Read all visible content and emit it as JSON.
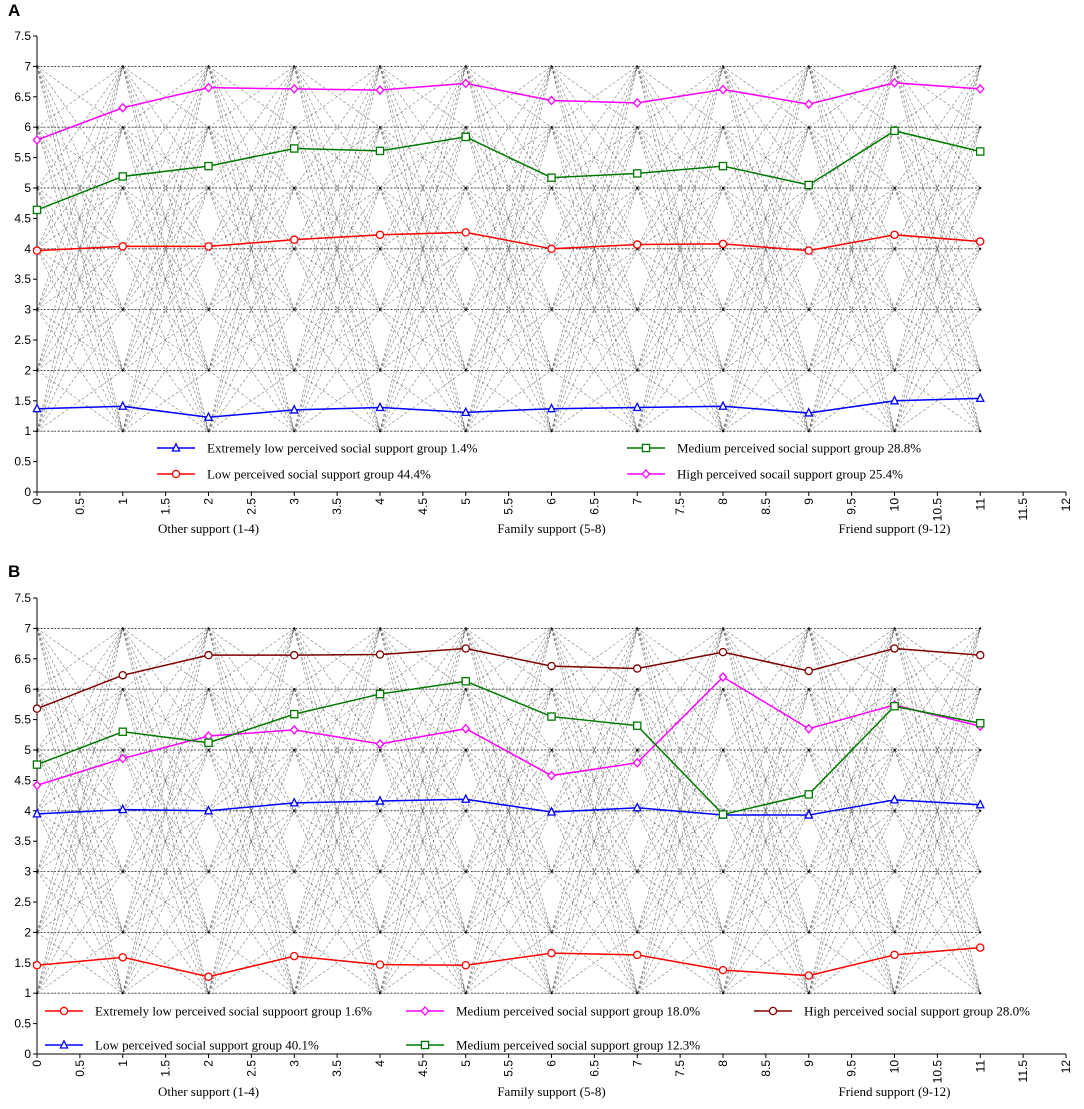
{
  "chart_data": [
    {
      "panel": "A",
      "type": "line",
      "xlim": [
        0,
        12
      ],
      "ylim": [
        0,
        7.5
      ],
      "x_ticks": [
        "0",
        "0.5",
        "1",
        "1.5",
        "2",
        "2.5",
        "3",
        "3.5",
        "4",
        "4.5",
        "5",
        "5.5",
        "6",
        "6.5",
        "7",
        "7.5",
        "8",
        "8.5",
        "9",
        "9.5",
        "10",
        "10.5",
        "11",
        "11.5",
        "12"
      ],
      "y_ticks": [
        "0",
        "0.5",
        "1",
        "1.5",
        "2",
        "2.5",
        "3",
        "3.5",
        "4",
        "4.5",
        "5",
        "5.5",
        "6",
        "6.5",
        "7",
        "7.5"
      ],
      "group_labels": [
        {
          "text": "Other support (1-4)",
          "x": 2.0
        },
        {
          "text": "Family support (5-8)",
          "x": 6.0
        },
        {
          "text": "Friend support (9-12)",
          "x": 10.0
        }
      ],
      "x": [
        0,
        1,
        2,
        3,
        4,
        5,
        6,
        7,
        8,
        9,
        10,
        11
      ],
      "series": [
        {
          "name": "Extremely low perceived social support group 1.4%",
          "color": "#0000ff",
          "marker": "triangle",
          "values": [
            1.37,
            1.41,
            1.23,
            1.35,
            1.39,
            1.31,
            1.37,
            1.39,
            1.41,
            1.3,
            1.5,
            1.54
          ]
        },
        {
          "name": "Low perceived social support group 44.4%",
          "color": "#ff0000",
          "marker": "circle",
          "values": [
            3.97,
            4.04,
            4.04,
            4.15,
            4.23,
            4.27,
            4.0,
            4.07,
            4.08,
            3.97,
            4.23,
            4.12
          ]
        },
        {
          "name": "Medium perceived social support group 28.8%",
          "color": "#007a00",
          "marker": "square",
          "values": [
            4.64,
            5.19,
            5.36,
            5.65,
            5.61,
            5.84,
            5.17,
            5.24,
            5.36,
            5.05,
            5.94,
            5.6
          ]
        },
        {
          "name": "High perceived socail support group 25.4%",
          "color": "#ff00ff",
          "marker": "diamond",
          "values": [
            5.79,
            6.32,
            6.65,
            6.63,
            6.61,
            6.72,
            6.44,
            6.4,
            6.62,
            6.38,
            6.73,
            6.63
          ]
        }
      ],
      "legend": [
        {
          "series": 0,
          "col": 0,
          "row": 0
        },
        {
          "series": 2,
          "col": 1,
          "row": 0
        },
        {
          "series": 1,
          "col": 0,
          "row": 1
        },
        {
          "series": 3,
          "col": 1,
          "row": 1
        }
      ]
    },
    {
      "panel": "B",
      "type": "line",
      "xlim": [
        0,
        12
      ],
      "ylim": [
        0,
        7.5
      ],
      "x_ticks": [
        "0",
        "0.5",
        "1",
        "1.5",
        "2",
        "2.5",
        "3",
        "3.5",
        "4",
        "4.5",
        "5",
        "5.5",
        "6",
        "6.5",
        "7",
        "7.5",
        "8",
        "8.5",
        "9",
        "9.5",
        "10",
        "10.5",
        "11",
        "11.5",
        "12"
      ],
      "y_ticks": [
        "0",
        "0.5",
        "1",
        "1.5",
        "2",
        "2.5",
        "3",
        "3.5",
        "4",
        "4.5",
        "5",
        "5.5",
        "6",
        "6.5",
        "7",
        "7.5"
      ],
      "group_labels": [
        {
          "text": "Other support (1-4)",
          "x": 2.0
        },
        {
          "text": "Family support (5-8)",
          "x": 6.0
        },
        {
          "text": "Friend support (9-12)",
          "x": 10.0
        }
      ],
      "x": [
        0,
        1,
        2,
        3,
        4,
        5,
        6,
        7,
        8,
        9,
        10,
        11
      ],
      "series": [
        {
          "name": "Extremely low perceived social suppoort group 1.6%",
          "color": "#ff0000",
          "marker": "circle",
          "values": [
            1.46,
            1.59,
            1.27,
            1.61,
            1.47,
            1.46,
            1.66,
            1.63,
            1.38,
            1.29,
            1.63,
            1.75
          ]
        },
        {
          "name": "Low perceived social support group 40.1%",
          "color": "#0000ff",
          "marker": "triangle",
          "values": [
            3.95,
            4.02,
            4.0,
            4.13,
            4.16,
            4.19,
            3.98,
            4.05,
            3.93,
            3.93,
            4.18,
            4.1
          ]
        },
        {
          "name": "Medium perceived social support group 18.0%",
          "color": "#ff00ff",
          "marker": "diamond",
          "values": [
            4.42,
            4.86,
            5.23,
            5.33,
            5.1,
            5.35,
            4.58,
            4.79,
            6.2,
            5.35,
            5.74,
            5.39
          ]
        },
        {
          "name": "Medium perceived  social support group 12.3%",
          "color": "#007a00",
          "marker": "square",
          "values": [
            4.76,
            5.3,
            5.12,
            5.59,
            5.92,
            6.13,
            5.55,
            5.4,
            3.94,
            4.27,
            5.72,
            5.44
          ]
        },
        {
          "name": "High perceived social support  group 28.0%",
          "color": "#800000",
          "marker": "circle",
          "values": [
            5.68,
            6.23,
            6.56,
            6.56,
            6.57,
            6.67,
            6.38,
            6.34,
            6.61,
            6.3,
            6.67,
            6.56
          ]
        }
      ],
      "legend": [
        {
          "series": 0,
          "col": 0,
          "row": 0
        },
        {
          "series": 2,
          "col": 1,
          "row": 0
        },
        {
          "series": 4,
          "col": 2,
          "row": 0
        },
        {
          "series": 1,
          "col": 0,
          "row": 1
        },
        {
          "series": 3,
          "col": 1,
          "row": 1
        }
      ]
    }
  ]
}
